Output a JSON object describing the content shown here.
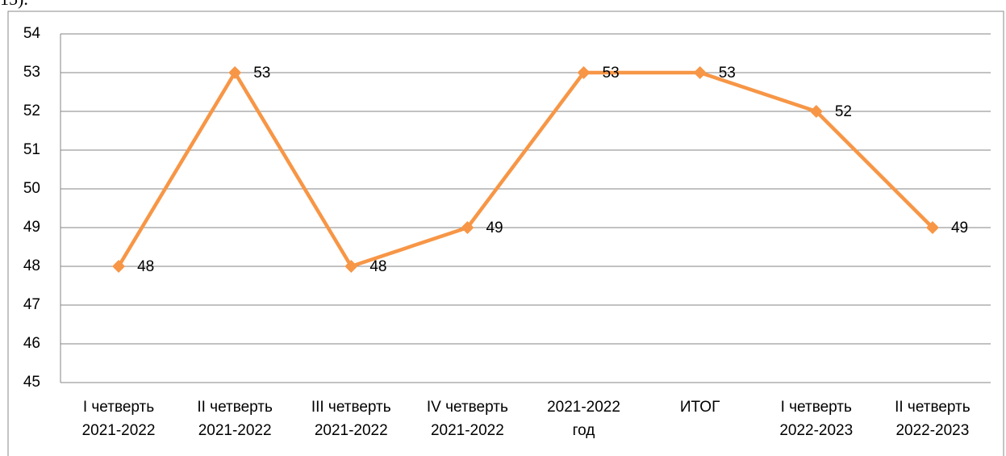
{
  "fragment": "15).",
  "chart_data": {
    "type": "line",
    "categories": [
      "I четверть\n2021-2022",
      "II  четверть\n2021-2022",
      "III четверть\n2021-2022",
      "IV  четверть\n2021-2022",
      "2021-2022\nгод",
      "ИТОГ",
      "I четверть\n2022-2023",
      "II  четверть\n2022-2023"
    ],
    "series": [
      {
        "name": "",
        "color": "#f79646",
        "values": [
          48,
          53,
          48,
          49,
          53,
          53,
          52,
          49
        ]
      }
    ],
    "ylim": [
      45,
      54
    ],
    "yticks": [
      45,
      46,
      47,
      48,
      49,
      50,
      51,
      52,
      53,
      54
    ],
    "grid": true
  }
}
